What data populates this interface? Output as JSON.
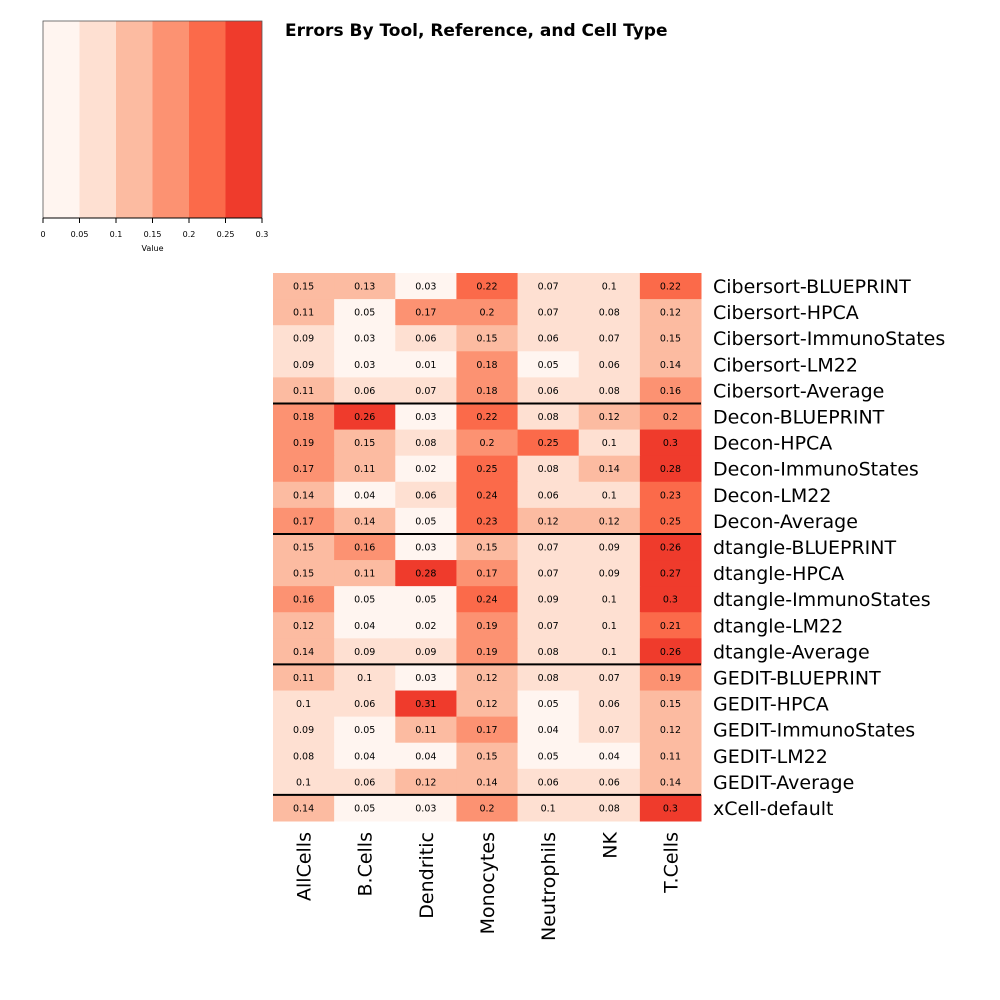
{
  "chart_data": {
    "type": "heatmap",
    "title": "Errors By Tool, Reference, and Cell Type",
    "columns": [
      "AllCells",
      "B.Cells",
      "Dendritic",
      "Monocytes",
      "Neutrophils",
      "NK",
      "T.Cells"
    ],
    "rows": [
      "Cibersort-BLUEPRINT",
      "Cibersort-HPCA",
      "Cibersort-ImmunoStates",
      "Cibersort-LM22",
      "Cibersort-Average",
      "Decon-BLUEPRINT",
      "Decon-HPCA",
      "Decon-ImmunoStates",
      "Decon-LM22",
      "Decon-Average",
      "dtangle-BLUEPRINT",
      "dtangle-HPCA",
      "dtangle-ImmunoStates",
      "dtangle-LM22",
      "dtangle-Average",
      "GEDIT-BLUEPRINT",
      "GEDIT-HPCA",
      "GEDIT-ImmunoStates",
      "GEDIT-LM22",
      "GEDIT-Average",
      "xCell-default"
    ],
    "values": [
      [
        0.15,
        0.13,
        0.03,
        0.22,
        0.07,
        0.1,
        0.22
      ],
      [
        0.11,
        0.05,
        0.17,
        0.2,
        0.07,
        0.08,
        0.12
      ],
      [
        0.09,
        0.03,
        0.06,
        0.15,
        0.06,
        0.07,
        0.15
      ],
      [
        0.09,
        0.03,
        0.01,
        0.18,
        0.05,
        0.06,
        0.14
      ],
      [
        0.11,
        0.06,
        0.07,
        0.18,
        0.06,
        0.08,
        0.16
      ],
      [
        0.18,
        0.26,
        0.03,
        0.22,
        0.08,
        0.12,
        0.2
      ],
      [
        0.19,
        0.15,
        0.08,
        0.2,
        0.25,
        0.1,
        0.3
      ],
      [
        0.17,
        0.11,
        0.02,
        0.25,
        0.08,
        0.14,
        0.28
      ],
      [
        0.14,
        0.04,
        0.06,
        0.24,
        0.06,
        0.1,
        0.23
      ],
      [
        0.17,
        0.14,
        0.05,
        0.23,
        0.12,
        0.12,
        0.25
      ],
      [
        0.15,
        0.16,
        0.03,
        0.15,
        0.07,
        0.09,
        0.26
      ],
      [
        0.15,
        0.11,
        0.28,
        0.17,
        0.07,
        0.09,
        0.27
      ],
      [
        0.16,
        0.05,
        0.05,
        0.24,
        0.09,
        0.1,
        0.3
      ],
      [
        0.12,
        0.04,
        0.02,
        0.19,
        0.07,
        0.1,
        0.21
      ],
      [
        0.14,
        0.09,
        0.09,
        0.19,
        0.08,
        0.1,
        0.26
      ],
      [
        0.11,
        0.1,
        0.03,
        0.12,
        0.08,
        0.07,
        0.19
      ],
      [
        0.1,
        0.06,
        0.31,
        0.12,
        0.05,
        0.06,
        0.15
      ],
      [
        0.09,
        0.05,
        0.11,
        0.17,
        0.04,
        0.07,
        0.12
      ],
      [
        0.08,
        0.04,
        0.04,
        0.15,
        0.05,
        0.04,
        0.11
      ],
      [
        0.1,
        0.06,
        0.12,
        0.14,
        0.06,
        0.06,
        0.14
      ],
      [
        0.14,
        0.05,
        0.03,
        0.2,
        0.1,
        0.08,
        0.3
      ]
    ],
    "group_separators_after_rows": [
      4,
      9,
      14,
      19
    ],
    "color_scale": {
      "breaks": [
        0,
        0.05,
        0.1,
        0.15,
        0.2,
        0.25,
        0.3
      ],
      "colors": [
        "#fff5f0",
        "#fee0d2",
        "#fcbba1",
        "#fc9272",
        "#fb6a4a",
        "#ef3b2c"
      ]
    },
    "legend": {
      "placement": "top-left",
      "ticks": [
        "0",
        "0.05",
        "0.1",
        "0.15",
        "0.2",
        "0.25",
        "0.3"
      ],
      "xlabel": "Value"
    }
  }
}
